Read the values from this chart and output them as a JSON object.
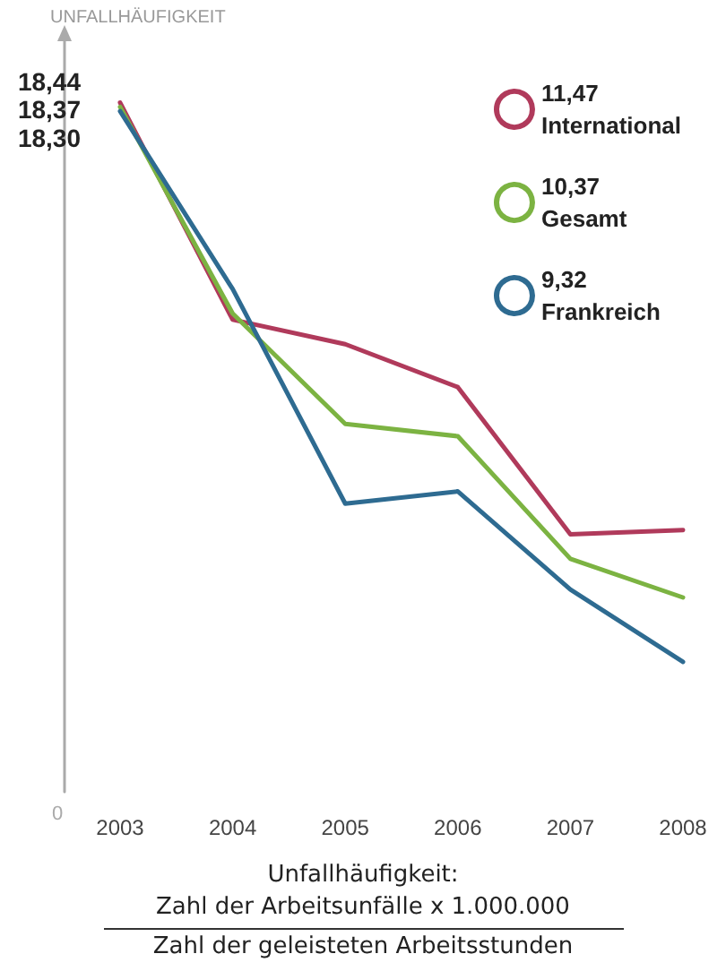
{
  "chart_data": {
    "type": "line",
    "ylabel": "UNFALLHÄUFIGKEIT",
    "categories": [
      "2003",
      "2004",
      "2005",
      "2006",
      "2007",
      "2008"
    ],
    "ylim": [
      7.2,
      19.5
    ],
    "tick_labels": "x",
    "grid": false,
    "legend": "top right",
    "marker": "none",
    "line_style": "solid",
    "series": [
      {
        "name": "11,47\nInternational",
        "color": "#b03a5b",
        "values": [
          18.44,
          14.9,
          14.5,
          13.8,
          11.4,
          11.47
        ],
        "value_labels": [
          "18,44",
          null,
          null,
          null,
          null,
          null
        ]
      },
      {
        "name": "10,37\nGesamt",
        "color": "#7cb342",
        "values": [
          18.37,
          15.0,
          13.2,
          13.0,
          11.0,
          10.37
        ],
        "value_labels": [
          "18,37",
          null,
          null,
          null,
          null,
          null
        ]
      },
      {
        "name": "9,32\nFrankreich",
        "color": "#2e6b91",
        "values": [
          18.3,
          15.4,
          11.9,
          12.1,
          10.5,
          9.32
        ],
        "value_labels": [
          "18,30",
          null,
          null,
          null,
          null,
          null
        ]
      }
    ],
    "annotations": [
      "0",
      "Unfallhäufigkeit:",
      "Zahl der Arbeitsunfälle x 1.000.000",
      "Zahl der geleisteten Arbeitsstunden"
    ]
  }
}
